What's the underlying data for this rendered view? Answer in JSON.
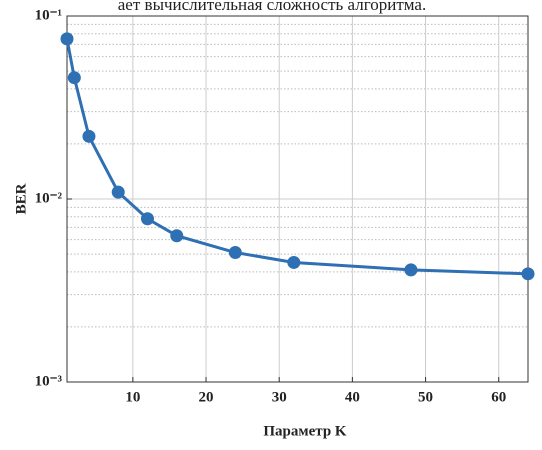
{
  "caption_top": "ает вычислительная сложность алгоритма.",
  "chart_data": {
    "type": "line",
    "x_label": "Параметр K",
    "y_label": "BER",
    "x": [
      1,
      2,
      4,
      8,
      12,
      16,
      24,
      32,
      48,
      64
    ],
    "series": [
      {
        "name": "BER",
        "color": "#2f6fb3",
        "values": [
          0.075,
          0.046,
          0.022,
          0.0109,
          0.0078,
          0.0063,
          0.0051,
          0.0045,
          0.0041,
          0.0039
        ]
      }
    ],
    "xlim": [
      1,
      64
    ],
    "xticks": [
      10,
      20,
      30,
      40,
      50,
      60
    ],
    "ylim": [
      0.001,
      0.1
    ],
    "log_y": true,
    "yticks": [
      {
        "value": 0.001,
        "label": "10⁻³"
      },
      {
        "value": 0.01,
        "label": "10⁻²"
      },
      {
        "value": 0.1,
        "label": "10⁻¹"
      }
    ],
    "grid": true,
    "minor_grid": true
  }
}
